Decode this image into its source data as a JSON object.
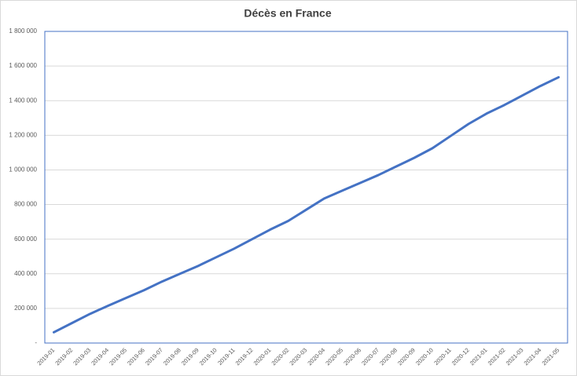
{
  "chart_data": {
    "type": "line",
    "title": "Décès en France",
    "categories": [
      "2019-01",
      "2019-02",
      "2019-03",
      "2019-04",
      "2019-05",
      "2019-06",
      "2019-07",
      "2019-08",
      "2019-09",
      "2019-10",
      "2019-11",
      "2019-12",
      "2020-01",
      "2020-02",
      "2020-03",
      "2020-04",
      "2020-05",
      "2020-06",
      "2020-07",
      "2020-08",
      "2020-09",
      "2020-10",
      "2020-11",
      "2020-12",
      "2021-01",
      "2021-02",
      "2021-03",
      "2021-04",
      "2021-05"
    ],
    "series": [
      {
        "name": "Décès",
        "color": "#4472c4",
        "values": [
          62000,
          115000,
          168000,
          215000,
          260000,
          305000,
          355000,
          400000,
          445000,
          495000,
          545000,
          600000,
          655000,
          705000,
          770000,
          835000,
          880000,
          925000,
          970000,
          1020000,
          1070000,
          1125000,
          1195000,
          1265000,
          1325000,
          1375000,
          1430000,
          1485000,
          1535000
        ]
      }
    ],
    "ylim": [
      0,
      1800000
    ],
    "yticks": [
      {
        "value": 0,
        "label": "-"
      },
      {
        "value": 200000,
        "label": "200 000"
      },
      {
        "value": 400000,
        "label": "400 000"
      },
      {
        "value": 600000,
        "label": "600 000"
      },
      {
        "value": 800000,
        "label": "800 000"
      },
      {
        "value": 1000000,
        "label": "1 000 000"
      },
      {
        "value": 1200000,
        "label": "1 200 000"
      },
      {
        "value": 1400000,
        "label": "1 400 000"
      },
      {
        "value": 1600000,
        "label": "1 600 000"
      },
      {
        "value": 1800000,
        "label": "1 800 000"
      }
    ],
    "grid": true
  }
}
